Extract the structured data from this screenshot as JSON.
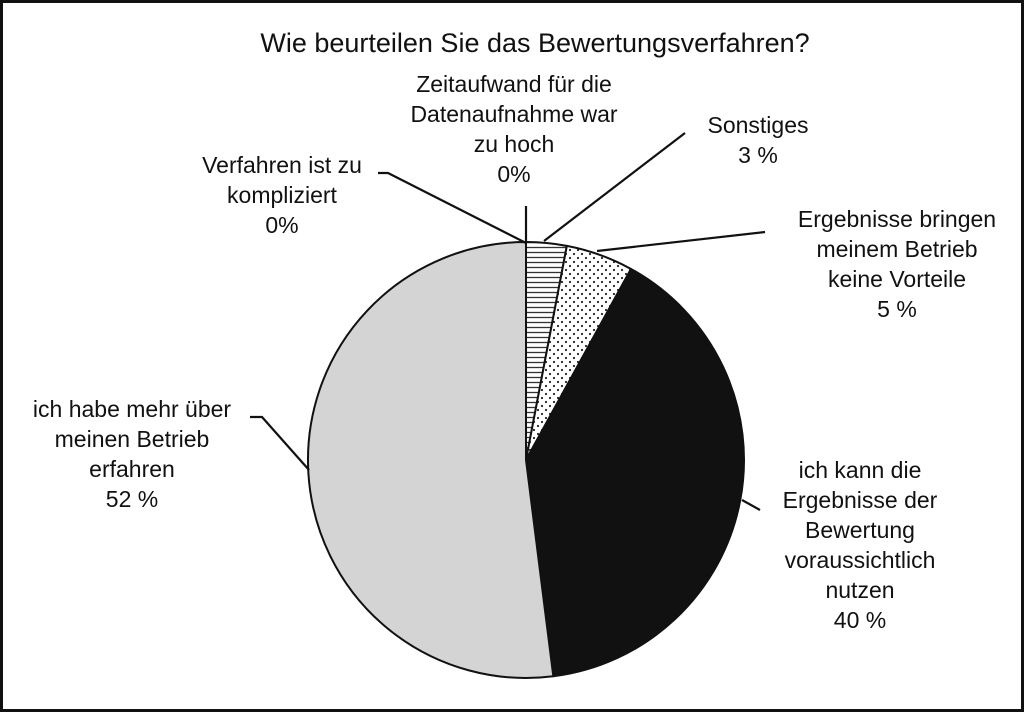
{
  "chart_data": {
    "type": "pie",
    "title": "Wie beurteilen Sie das Bewertungsverfahren?",
    "slices": [
      {
        "label_lines": [
          "Zeitaufwand für die",
          "Datenaufnahme war",
          "zu hoch"
        ],
        "value_label": "0%",
        "value": 0,
        "fill": "none"
      },
      {
        "label_lines": [
          "Sonstiges"
        ],
        "value_label": "3 %",
        "value": 3,
        "fill": "horizontal-stripes"
      },
      {
        "label_lines": [
          "Ergebnisse bringen",
          "meinem Betrieb",
          "keine Vorteile"
        ],
        "value_label": "5 %",
        "value": 5,
        "fill": "dots"
      },
      {
        "label_lines": [
          "ich kann die",
          "Ergebnisse der",
          "Bewertung",
          "voraussichtlich",
          "nutzen"
        ],
        "value_label": "40 %",
        "value": 40,
        "fill": "#111111"
      },
      {
        "label_lines": [
          "ich habe mehr über",
          "meinen Betrieb",
          "erfahren"
        ],
        "value_label": "52 %",
        "value": 52,
        "fill": "#d4d4d4"
      },
      {
        "label_lines": [
          "Verfahren ist zu",
          "kompliziert"
        ],
        "value_label": "0%",
        "value": 0,
        "fill": "none"
      }
    ],
    "start_angle": "12 o'clock",
    "direction": "clockwise",
    "legend": "none"
  }
}
